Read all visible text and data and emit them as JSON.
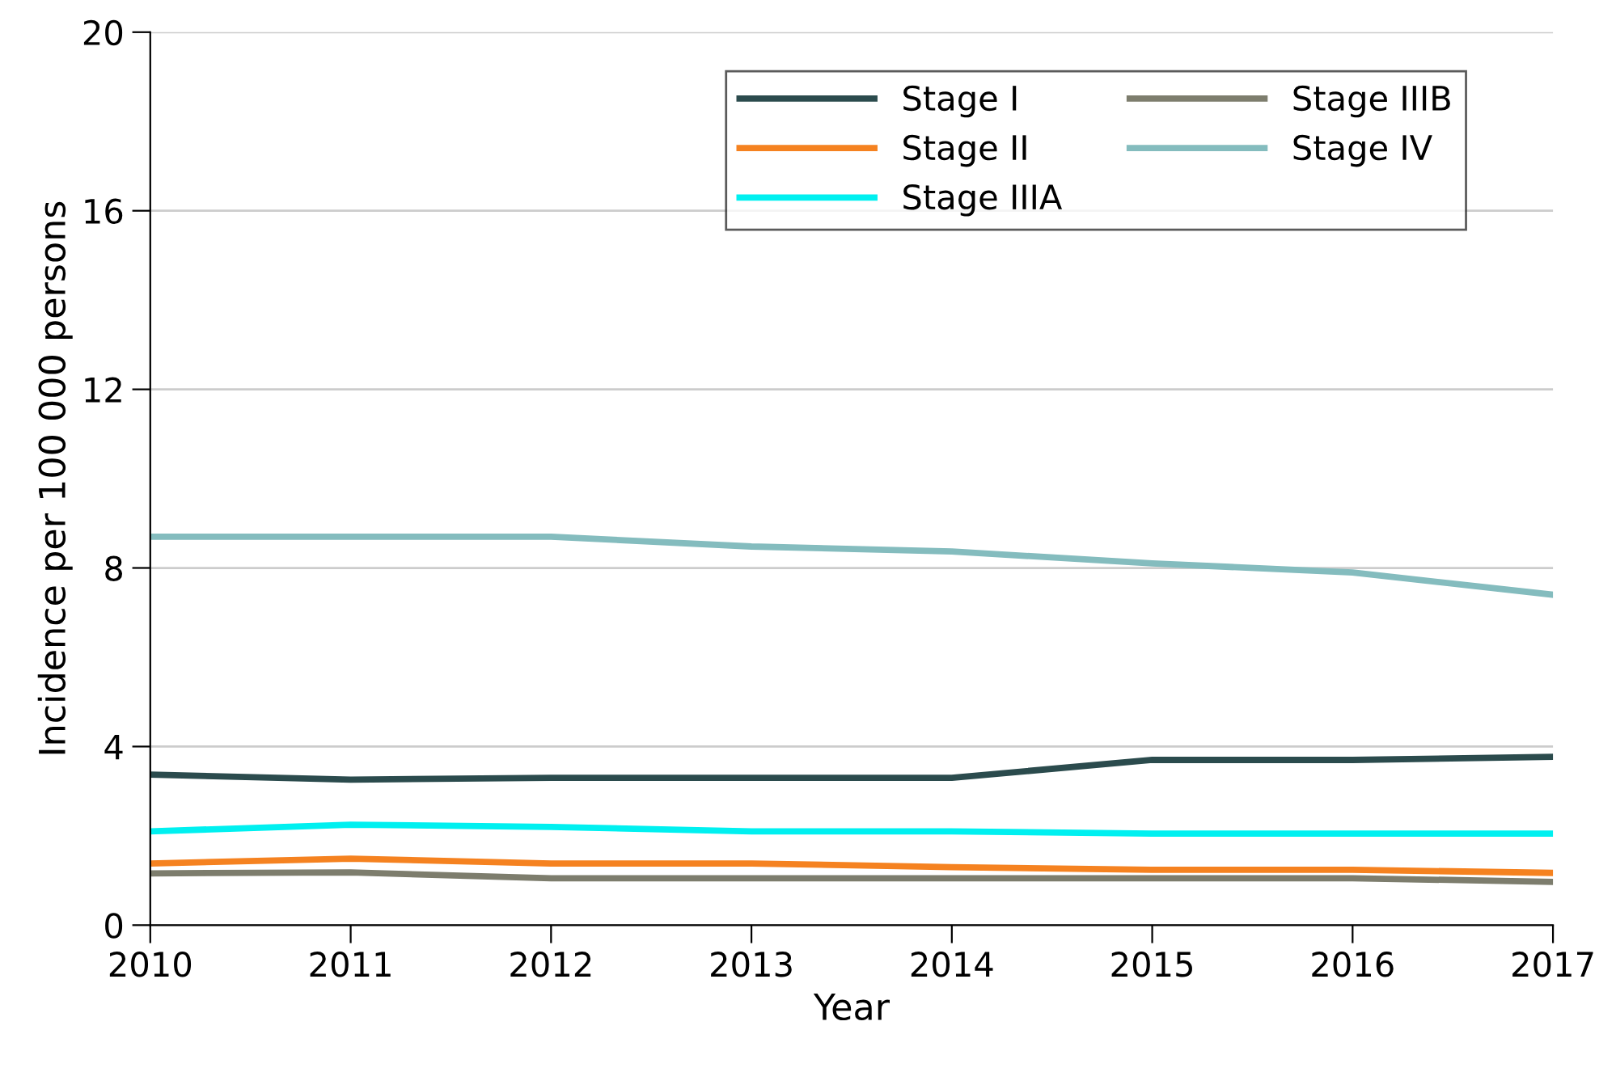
{
  "chart_data": {
    "type": "line",
    "xlabel": "Year",
    "ylabel": "Incidence per 100 000 persons",
    "x": [
      2010,
      2011,
      2012,
      2013,
      2014,
      2015,
      2016,
      2017
    ],
    "xlim": [
      2010,
      2017
    ],
    "xticks": [
      2010,
      2011,
      2012,
      2013,
      2014,
      2015,
      2016,
      2017
    ],
    "ylim": [
      0,
      20
    ],
    "yticks": [
      0,
      4,
      8,
      12,
      16,
      20
    ],
    "grid": "y",
    "legend": "top right",
    "series": [
      {
        "name": "Stage I",
        "color": "#2b4b4d",
        "values": [
          3.37,
          3.26,
          3.3,
          3.3,
          3.3,
          3.7,
          3.7,
          3.77
        ]
      },
      {
        "name": "Stage II",
        "color": "#f58220",
        "values": [
          1.38,
          1.49,
          1.38,
          1.38,
          1.3,
          1.24,
          1.24,
          1.17
        ]
      },
      {
        "name": "Stage IIIA",
        "color": "#00f0f0",
        "values": [
          2.1,
          2.25,
          2.2,
          2.1,
          2.1,
          2.05,
          2.05,
          2.05
        ]
      },
      {
        "name": "Stage IIIB",
        "color": "#7d7d6d",
        "values": [
          1.16,
          1.18,
          1.05,
          1.05,
          1.05,
          1.05,
          1.05,
          0.97
        ]
      },
      {
        "name": "Stage IV",
        "color": "#84bcbe",
        "values": [
          8.7,
          8.7,
          8.7,
          8.48,
          8.37,
          8.1,
          7.9,
          7.4
        ]
      }
    ]
  }
}
